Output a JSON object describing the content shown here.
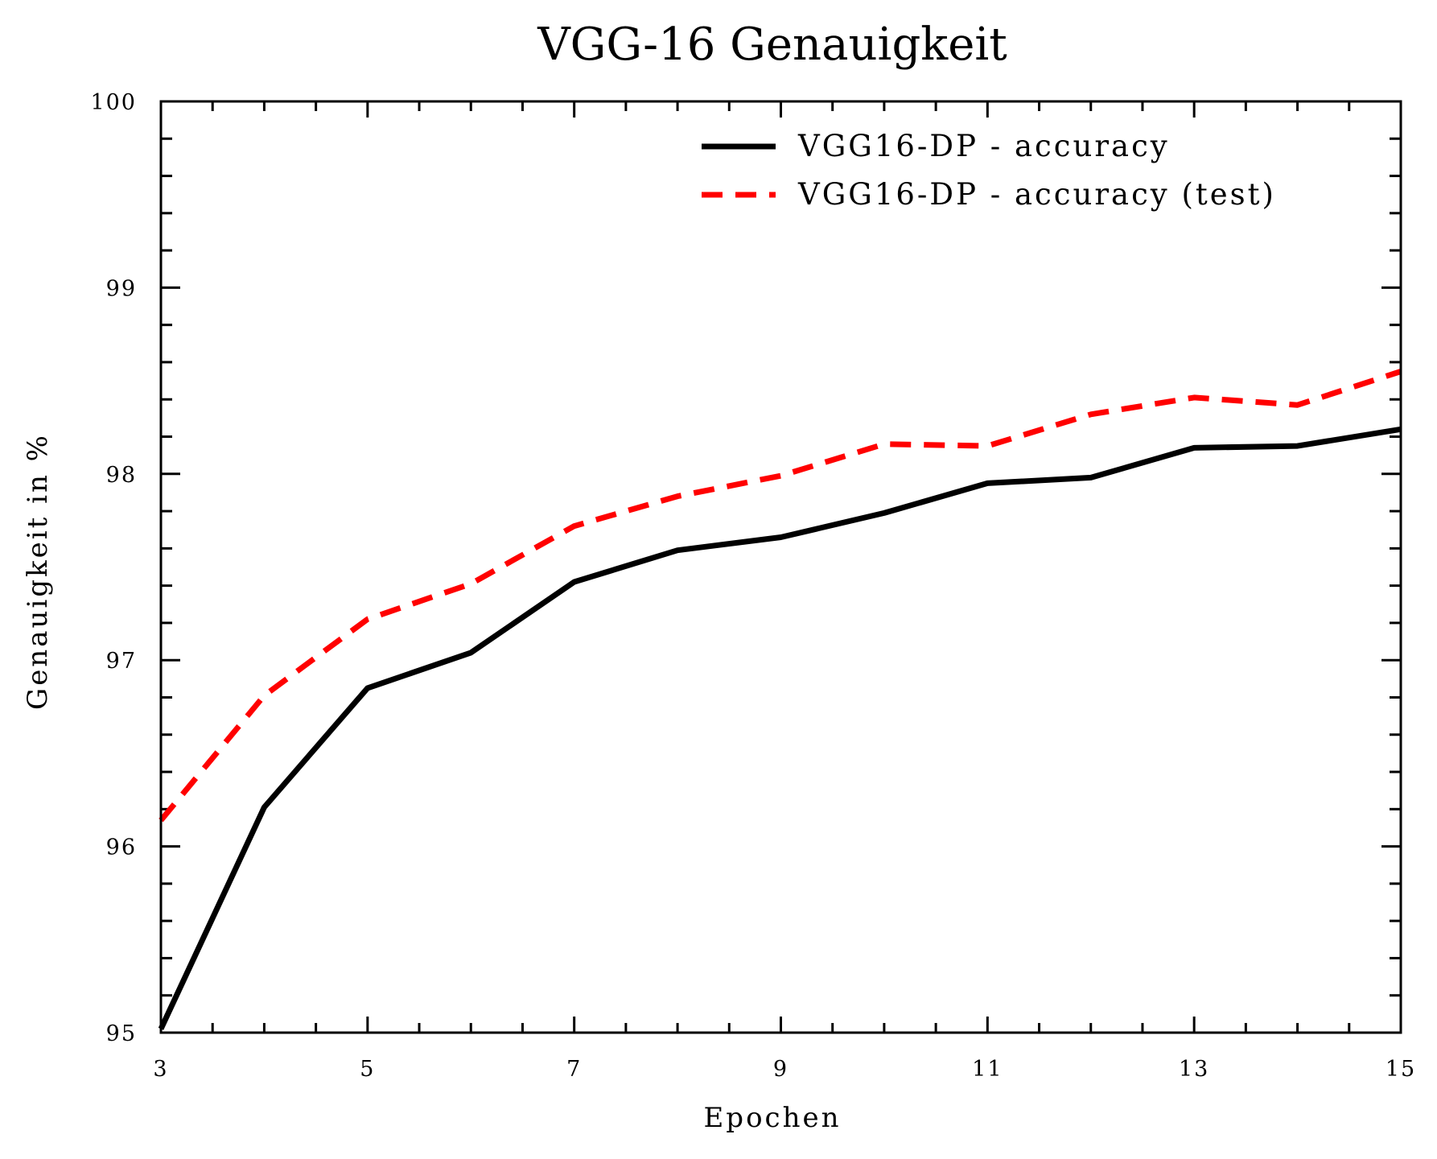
{
  "chart_data": {
    "type": "line",
    "title": "VGG-16 Genauigkeit",
    "xlabel": "Epochen",
    "ylabel": "Genauigkeit in %",
    "xlim": [
      3,
      15
    ],
    "ylim": [
      95,
      100
    ],
    "xticks": [
      3,
      5,
      7,
      9,
      11,
      13,
      15
    ],
    "yticks": [
      95,
      96,
      97,
      98,
      99,
      100
    ],
    "x_minor_step": 0.5,
    "y_minor_step": 0.2,
    "grid": false,
    "legend_position": "top-right",
    "x": [
      3,
      4,
      5,
      6,
      7,
      8,
      9,
      10,
      11,
      12,
      13,
      14,
      15
    ],
    "series": [
      {
        "name": "VGG16-DP - accuracy",
        "color": "#000000",
        "style": "solid",
        "values": [
          95.02,
          96.21,
          96.85,
          97.04,
          97.42,
          97.59,
          97.66,
          97.79,
          97.95,
          97.98,
          98.14,
          98.15,
          98.24
        ]
      },
      {
        "name": "VGG16-DP - accuracy (test)",
        "color": "#ff0000",
        "style": "dashed",
        "values": [
          96.14,
          96.81,
          97.22,
          97.41,
          97.72,
          97.88,
          97.99,
          98.16,
          98.15,
          98.32,
          98.41,
          98.37,
          98.55
        ]
      }
    ]
  }
}
